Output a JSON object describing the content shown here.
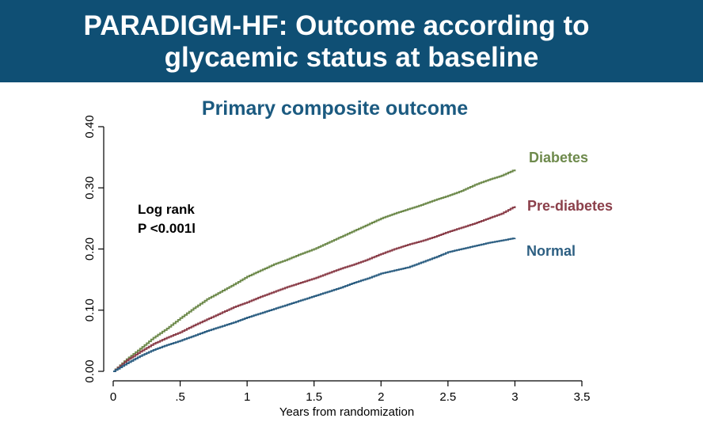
{
  "header": {
    "title_line1": "PARADIGM-HF: Outcome according to",
    "title_line2": "glycaemic status at baseline"
  },
  "chart_data": {
    "type": "line",
    "title": "Primary composite outcome",
    "xlabel": "Years from randomization",
    "ylabel": "",
    "xlim": [
      0,
      3.5
    ],
    "ylim": [
      0,
      0.4
    ],
    "x_ticks": [
      0,
      0.5,
      1,
      1.5,
      2,
      2.5,
      3,
      3.5
    ],
    "x_tick_labels": [
      "0",
      ".5",
      "1",
      "1.5",
      "2",
      "2.5",
      "3",
      "3.5"
    ],
    "y_ticks": [
      0,
      0.1,
      0.2,
      0.3,
      0.4
    ],
    "y_tick_labels": [
      "0.00",
      "0.10",
      "0.20",
      "0.30",
      "0.40"
    ],
    "grid": false,
    "annotation": [
      "Log rank",
      "P <0.001l"
    ],
    "series": [
      {
        "name": "Diabetes",
        "color": "#6e8a4c",
        "x": [
          0,
          0.1,
          0.2,
          0.3,
          0.4,
          0.5,
          0.6,
          0.7,
          0.8,
          0.9,
          1.0,
          1.1,
          1.2,
          1.3,
          1.4,
          1.5,
          1.6,
          1.7,
          1.8,
          1.9,
          2.0,
          2.1,
          2.2,
          2.3,
          2.4,
          2.5,
          2.6,
          2.7,
          2.8,
          2.9,
          3.0
        ],
        "y": [
          0,
          0.02,
          0.037,
          0.055,
          0.07,
          0.087,
          0.103,
          0.118,
          0.13,
          0.142,
          0.155,
          0.165,
          0.175,
          0.183,
          0.192,
          0.2,
          0.21,
          0.22,
          0.23,
          0.24,
          0.25,
          0.258,
          0.265,
          0.272,
          0.28,
          0.287,
          0.295,
          0.305,
          0.313,
          0.32,
          0.33
        ]
      },
      {
        "name": "Pre-diabetes",
        "color": "#8b3f4a",
        "x": [
          0,
          0.1,
          0.2,
          0.3,
          0.4,
          0.5,
          0.6,
          0.7,
          0.8,
          0.9,
          1.0,
          1.1,
          1.2,
          1.3,
          1.4,
          1.5,
          1.6,
          1.7,
          1.8,
          1.9,
          2.0,
          2.1,
          2.2,
          2.3,
          2.4,
          2.5,
          2.6,
          2.7,
          2.8,
          2.9,
          3.0
        ],
        "y": [
          0,
          0.018,
          0.032,
          0.045,
          0.055,
          0.064,
          0.075,
          0.085,
          0.095,
          0.105,
          0.113,
          0.122,
          0.13,
          0.138,
          0.145,
          0.152,
          0.16,
          0.168,
          0.175,
          0.183,
          0.192,
          0.2,
          0.207,
          0.213,
          0.22,
          0.228,
          0.235,
          0.242,
          0.25,
          0.258,
          0.27
        ]
      },
      {
        "name": "Normal",
        "color": "#2d5f82",
        "x": [
          0,
          0.1,
          0.2,
          0.3,
          0.4,
          0.5,
          0.6,
          0.7,
          0.8,
          0.9,
          1.0,
          1.1,
          1.2,
          1.3,
          1.4,
          1.5,
          1.6,
          1.7,
          1.8,
          1.9,
          2.0,
          2.1,
          2.2,
          2.3,
          2.4,
          2.5,
          2.6,
          2.7,
          2.8,
          2.9,
          3.0
        ],
        "y": [
          0,
          0.013,
          0.025,
          0.035,
          0.043,
          0.05,
          0.058,
          0.066,
          0.073,
          0.08,
          0.088,
          0.095,
          0.102,
          0.109,
          0.116,
          0.123,
          0.13,
          0.137,
          0.145,
          0.152,
          0.16,
          0.165,
          0.17,
          0.178,
          0.186,
          0.195,
          0.2,
          0.205,
          0.21,
          0.214,
          0.218
        ]
      }
    ]
  }
}
